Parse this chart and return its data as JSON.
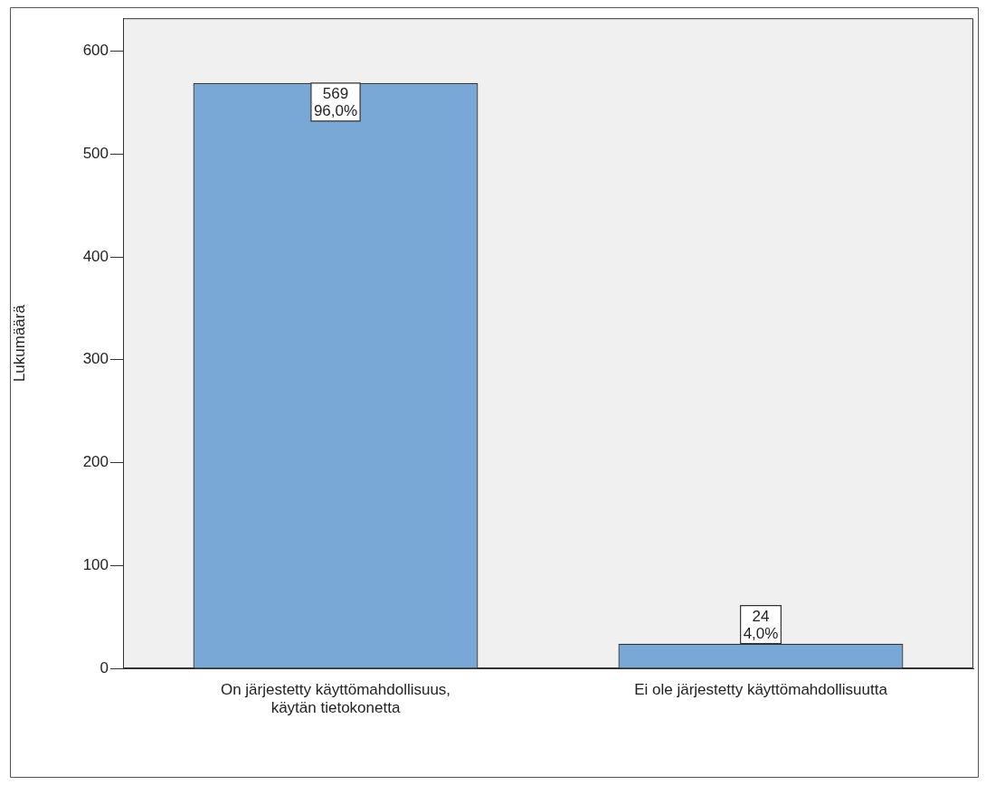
{
  "chart_data": {
    "type": "bar",
    "ylabel": "Lukumäärä",
    "categories": [
      "On järjestetty käyttömahdollisuus, käytän tietokonetta",
      "Ei ole järjestetty käyttömahdollisuutta"
    ],
    "values": [
      569,
      24
    ],
    "value_labels": [
      "569\n96,0%",
      "24\n4,0%"
    ],
    "color": "#7aa8d6",
    "ylim": [
      0,
      632
    ],
    "yticks": [
      0,
      100,
      200,
      300,
      400,
      500,
      600
    ],
    "grid": false,
    "legend": false
  }
}
